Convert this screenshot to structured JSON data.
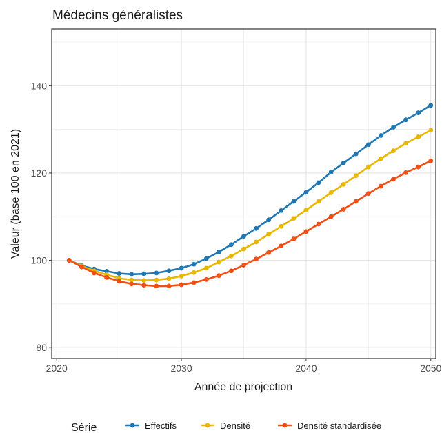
{
  "chart_data": {
    "type": "line",
    "title": "Médecins généralistes",
    "xlabel": "Année de projection",
    "ylabel": "Valeur (base 100 en 2021)",
    "xlim": [
      2019.6,
      2050.4
    ],
    "ylim": [
      77.5,
      153
    ],
    "x_ticks": [
      2020,
      2030,
      2040,
      2050
    ],
    "y_ticks": [
      80,
      100,
      120,
      140
    ],
    "grid": true,
    "legend": {
      "title": "Série",
      "position": "bottom"
    },
    "x": [
      2021,
      2022,
      2023,
      2024,
      2025,
      2026,
      2027,
      2028,
      2029,
      2030,
      2031,
      2032,
      2033,
      2034,
      2035,
      2036,
      2037,
      2038,
      2039,
      2040,
      2041,
      2042,
      2043,
      2044,
      2045,
      2046,
      2047,
      2048,
      2049,
      2050
    ],
    "series": [
      {
        "name": "Effectifs",
        "color": "#1f78b4",
        "values": [
          100,
          98.8,
          98.0,
          97.5,
          97.0,
          96.8,
          96.9,
          97.1,
          97.6,
          98.2,
          99.1,
          100.4,
          101.9,
          103.6,
          105.5,
          107.3,
          109.3,
          111.4,
          113.5,
          115.6,
          117.8,
          120.2,
          122.3,
          124.4,
          126.5,
          128.6,
          130.5,
          132.2,
          133.8,
          135.5
        ]
      },
      {
        "name": "Densité",
        "color": "#e8b800",
        "values": [
          100,
          98.7,
          97.6,
          96.7,
          95.9,
          95.5,
          95.4,
          95.5,
          95.8,
          96.4,
          97.2,
          98.2,
          99.6,
          101.0,
          102.6,
          104.2,
          106.0,
          107.8,
          109.6,
          111.5,
          113.5,
          115.5,
          117.4,
          119.4,
          121.4,
          123.3,
          125.1,
          126.8,
          128.3,
          129.8
        ]
      },
      {
        "name": "Densité standardisée",
        "color": "#f04e14",
        "values": [
          100,
          98.5,
          97.1,
          96.1,
          95.2,
          94.6,
          94.3,
          94.1,
          94.1,
          94.4,
          94.9,
          95.6,
          96.5,
          97.6,
          98.9,
          100.3,
          101.8,
          103.3,
          104.9,
          106.6,
          108.3,
          110.0,
          111.7,
          113.5,
          115.3,
          117.0,
          118.6,
          120.1,
          121.4,
          122.8
        ]
      }
    ]
  }
}
